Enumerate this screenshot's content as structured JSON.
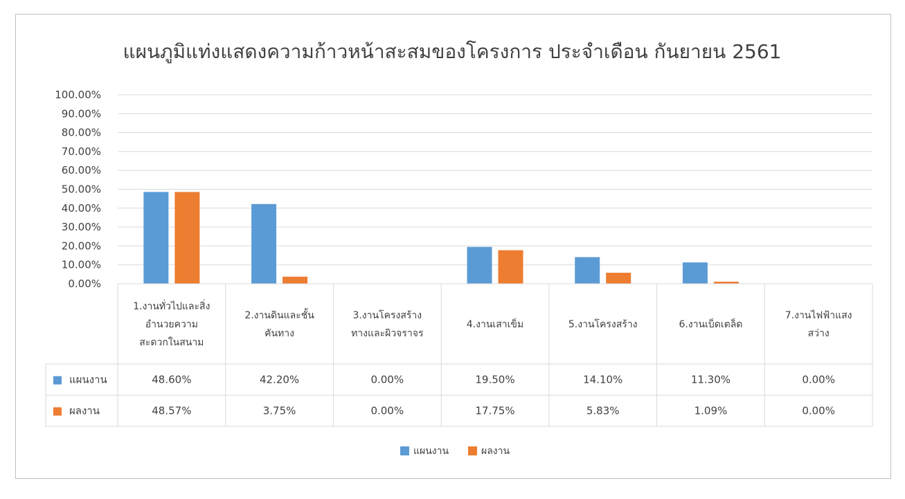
{
  "chart_data": {
    "type": "bar",
    "title": "แผนภูมิแท่งแสดงความก้าวหน้าสะสมของโครงการ ประจำเดือน กันยายน 2561",
    "xlabel": "",
    "ylabel": "",
    "ylim": [
      0,
      100
    ],
    "yticks": [
      "0.00%",
      "10.00%",
      "20.00%",
      "30.00%",
      "40.00%",
      "50.00%",
      "60.00%",
      "70.00%",
      "80.00%",
      "90.00%",
      "100.00%"
    ],
    "grid": true,
    "legend_position": "bottom",
    "categories": [
      [
        "1.งานทั่วไปและสิ่ง",
        "อำนวยความ",
        "สะดวกในสนาม"
      ],
      [
        "2.งานดินและชั้น",
        "คันทาง"
      ],
      [
        "3.งานโครงสร้าง",
        "ทางและผิวจราจร"
      ],
      [
        "4.งานเสาเข็ม"
      ],
      [
        "5.งานโครงสร้าง"
      ],
      [
        "6.งานเบ็ดเตล็ด"
      ],
      [
        "7.งานไฟฟ้าแสง",
        "สว่าง"
      ]
    ],
    "series": [
      {
        "name": "แผนงาน",
        "color": "#5b9bd5",
        "values": [
          48.6,
          42.2,
          0.0,
          19.5,
          14.1,
          11.3,
          0.0
        ],
        "labels": [
          "48.60%",
          "42.20%",
          "0.00%",
          "19.50%",
          "14.10%",
          "11.30%",
          "0.00%"
        ]
      },
      {
        "name": "ผลงาน",
        "color": "#ed7d31",
        "values": [
          48.57,
          3.75,
          0.0,
          17.75,
          5.83,
          1.09,
          0.0
        ],
        "labels": [
          "48.57%",
          "3.75%",
          "0.00%",
          "17.75%",
          "5.83%",
          "1.09%",
          "0.00%"
        ]
      }
    ]
  }
}
